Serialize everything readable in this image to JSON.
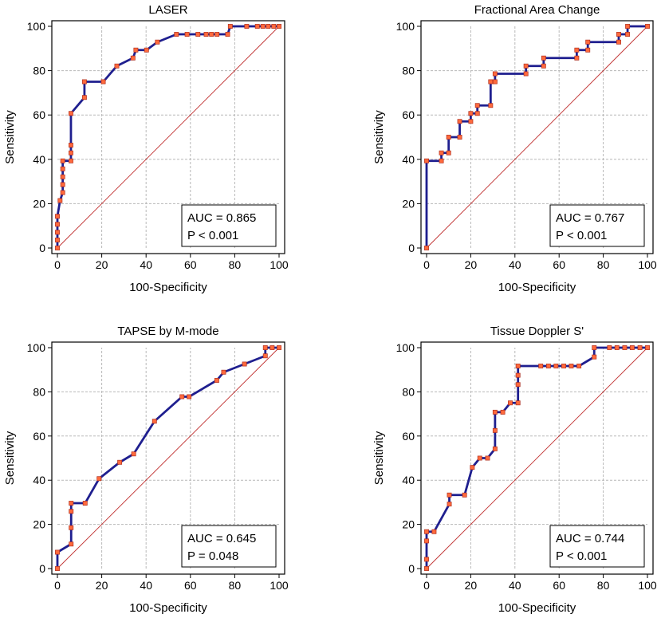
{
  "colors": {
    "curve": "#1f1f8f",
    "marker_fill": "#ff6a3d",
    "marker_edge": "#b03020",
    "diagonal": "#c03030",
    "grid": "#b8b8b8",
    "frame": "#000000"
  },
  "chart_data": [
    {
      "type": "line",
      "title": "LASER",
      "xlabel": "100-Specificity",
      "ylabel": "Sensitivity",
      "xlim": [
        0,
        100
      ],
      "ylim": [
        0,
        100
      ],
      "xticks": [
        "0",
        "20",
        "40",
        "60",
        "80",
        "100"
      ],
      "yticks": [
        "0",
        "20",
        "40",
        "60",
        "80",
        "100"
      ],
      "grid": true,
      "reference_line": [
        [
          0,
          0
        ],
        [
          100,
          100
        ]
      ],
      "annotation": {
        "auc": "AUC = 0.865",
        "p": "P < 0.001",
        "placement": "bottom-right"
      },
      "curve": [
        [
          0,
          0
        ],
        [
          0,
          3.6
        ],
        [
          0,
          7.1
        ],
        [
          0,
          10.7
        ],
        [
          0,
          14.3
        ],
        [
          1.2,
          21.4
        ],
        [
          2.4,
          25.0
        ],
        [
          2.4,
          28.6
        ],
        [
          2.4,
          32.1
        ],
        [
          2.4,
          35.7
        ],
        [
          2.4,
          39.3
        ],
        [
          6.1,
          39.3
        ],
        [
          6.1,
          42.9
        ],
        [
          6.1,
          46.4
        ],
        [
          6.1,
          60.7
        ],
        [
          12.2,
          67.9
        ],
        [
          12.2,
          75.0
        ],
        [
          20.7,
          75.0
        ],
        [
          26.8,
          82.1
        ],
        [
          34.1,
          85.7
        ],
        [
          35.4,
          89.3
        ],
        [
          40.2,
          89.3
        ],
        [
          45.1,
          92.9
        ],
        [
          53.7,
          96.4
        ],
        [
          58.5,
          96.4
        ],
        [
          63.4,
          96.4
        ],
        [
          67.1,
          96.4
        ],
        [
          69.5,
          96.4
        ],
        [
          72.0,
          96.4
        ],
        [
          76.8,
          96.4
        ],
        [
          78.0,
          100
        ],
        [
          85.4,
          100
        ],
        [
          90.2,
          100
        ],
        [
          92.7,
          100
        ],
        [
          95.1,
          100
        ],
        [
          97.6,
          100
        ],
        [
          100,
          100
        ]
      ]
    },
    {
      "type": "line",
      "title": "Fractional Area Change",
      "xlabel": "100-Specificity",
      "ylabel": "Sensitivity",
      "xlim": [
        0,
        100
      ],
      "ylim": [
        0,
        100
      ],
      "xticks": [
        "0",
        "20",
        "40",
        "60",
        "80",
        "100"
      ],
      "yticks": [
        "0",
        "20",
        "40",
        "60",
        "80",
        "100"
      ],
      "grid": true,
      "reference_line": [
        [
          0,
          0
        ],
        [
          100,
          100
        ]
      ],
      "annotation": {
        "auc": "AUC = 0.767",
        "p": "P < 0.001",
        "placement": "bottom-right"
      },
      "curve": [
        [
          0,
          0
        ],
        [
          0,
          39.3
        ],
        [
          6.7,
          39.3
        ],
        [
          6.7,
          42.9
        ],
        [
          10,
          42.9
        ],
        [
          10,
          50
        ],
        [
          15,
          50
        ],
        [
          15,
          57.1
        ],
        [
          20,
          57.1
        ],
        [
          20,
          60.7
        ],
        [
          23,
          60.7
        ],
        [
          23,
          64.3
        ],
        [
          29,
          64.3
        ],
        [
          29,
          75
        ],
        [
          31,
          75
        ],
        [
          31,
          78.6
        ],
        [
          45,
          78.6
        ],
        [
          45,
          82.1
        ],
        [
          53,
          82.1
        ],
        [
          53,
          85.7
        ],
        [
          68,
          85.7
        ],
        [
          68,
          89.3
        ],
        [
          73,
          89.3
        ],
        [
          73,
          92.9
        ],
        [
          87,
          92.9
        ],
        [
          87,
          96.4
        ],
        [
          91,
          96.4
        ],
        [
          91,
          100
        ],
        [
          100,
          100
        ]
      ]
    },
    {
      "type": "line",
      "title": "TAPSE by M-mode",
      "xlabel": "100-Specificity",
      "ylabel": "Sensitivity",
      "xlim": [
        0,
        100
      ],
      "ylim": [
        0,
        100
      ],
      "xticks": [
        "0",
        "20",
        "40",
        "60",
        "80",
        "100"
      ],
      "yticks": [
        "0",
        "20",
        "40",
        "60",
        "80",
        "100"
      ],
      "grid": true,
      "reference_line": [
        [
          0,
          0
        ],
        [
          100,
          100
        ]
      ],
      "annotation": {
        "auc": "AUC = 0.645",
        "p": "P = 0.048",
        "placement": "bottom-right"
      },
      "curve": [
        [
          0,
          0
        ],
        [
          0,
          7.4
        ],
        [
          6.2,
          11.1
        ],
        [
          6.2,
          18.5
        ],
        [
          6.2,
          25.9
        ],
        [
          6.2,
          29.6
        ],
        [
          12.5,
          29.6
        ],
        [
          18.8,
          40.7
        ],
        [
          28.1,
          48.1
        ],
        [
          34.4,
          51.9
        ],
        [
          43.8,
          66.7
        ],
        [
          56.2,
          77.8
        ],
        [
          59.4,
          77.8
        ],
        [
          71.9,
          85.2
        ],
        [
          75,
          88.9
        ],
        [
          84.4,
          92.6
        ],
        [
          93.8,
          96.3
        ],
        [
          93.8,
          100
        ],
        [
          96.9,
          100
        ],
        [
          100,
          100
        ]
      ]
    },
    {
      "type": "line",
      "title": "Tissue Doppler S'",
      "xlabel": "100-Specificity",
      "ylabel": "Sensitivity",
      "xlim": [
        0,
        100
      ],
      "ylim": [
        0,
        100
      ],
      "xticks": [
        "0",
        "20",
        "40",
        "60",
        "80",
        "100"
      ],
      "yticks": [
        "0",
        "20",
        "40",
        "60",
        "80",
        "100"
      ],
      "grid": true,
      "reference_line": [
        [
          0,
          0
        ],
        [
          100,
          100
        ]
      ],
      "annotation": {
        "auc": "AUC = 0.744",
        "p": "P < 0.001",
        "placement": "bottom-right"
      },
      "curve": [
        [
          0,
          0
        ],
        [
          0,
          4.2
        ],
        [
          0,
          12.5
        ],
        [
          0,
          16.7
        ],
        [
          3.4,
          16.7
        ],
        [
          10.3,
          29.2
        ],
        [
          10.3,
          33.3
        ],
        [
          17.2,
          33.3
        ],
        [
          20.7,
          45.8
        ],
        [
          24.1,
          50
        ],
        [
          27.6,
          50
        ],
        [
          31.0,
          54.2
        ],
        [
          31.0,
          62.5
        ],
        [
          31.0,
          70.8
        ],
        [
          34.5,
          70.8
        ],
        [
          37.9,
          75
        ],
        [
          41.4,
          75
        ],
        [
          41.4,
          83.3
        ],
        [
          41.4,
          87.5
        ],
        [
          41.4,
          91.7
        ],
        [
          51.7,
          91.7
        ],
        [
          55.2,
          91.7
        ],
        [
          58.6,
          91.7
        ],
        [
          62.1,
          91.7
        ],
        [
          65.5,
          91.7
        ],
        [
          69.0,
          91.7
        ],
        [
          75.9,
          95.8
        ],
        [
          75.9,
          100
        ],
        [
          82.8,
          100
        ],
        [
          86.2,
          100
        ],
        [
          89.7,
          100
        ],
        [
          93.1,
          100
        ],
        [
          96.6,
          100
        ],
        [
          100,
          100
        ]
      ]
    }
  ]
}
